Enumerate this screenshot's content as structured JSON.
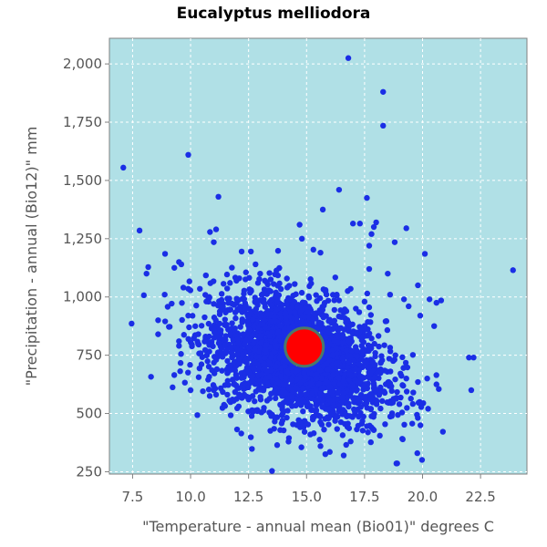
{
  "chart_data": {
    "type": "scatter",
    "title": "Eucalyptus melliodora",
    "xlabel": "\"Temperature - annual mean (Bio01)\" degrees C",
    "ylabel": "\"Precipitation - annual (Bio12)\" mm",
    "xlim": [
      6.5,
      24.5
    ],
    "ylim": [
      240,
      2110
    ],
    "x_ticks": [
      7.5,
      10.0,
      12.5,
      15.0,
      17.5,
      20.0,
      22.5
    ],
    "x_tick_labels": [
      "7.5",
      "10.0",
      "12.5",
      "15.0",
      "17.5",
      "20.0",
      "22.5"
    ],
    "y_ticks": [
      250,
      500,
      750,
      1000,
      1250,
      1500,
      1750,
      2000
    ],
    "y_tick_labels": [
      "250",
      "500",
      "750",
      "1,000",
      "1,250",
      "1,500",
      "1,750",
      "2,000"
    ],
    "grid": true,
    "colors": {
      "plot_background": "#b0e0e6",
      "point": "#1a2ee6",
      "mean_marker": "#ff0000",
      "mean_marker_outline": "#4a7a6a",
      "grid": "#ffffff"
    },
    "mean_point": {
      "x": 14.9,
      "y": 785
    },
    "cluster": {
      "center_x": 14.6,
      "center_y": 760,
      "spread_x": 1.9,
      "spread_y": 130,
      "count": 2600
    },
    "points": [
      [
        16.8,
        2025
      ],
      [
        18.3,
        1880
      ],
      [
        18.3,
        1735
      ],
      [
        9.9,
        1610
      ],
      [
        7.1,
        1555
      ],
      [
        16.4,
        1460
      ],
      [
        17.6,
        1425
      ],
      [
        11.2,
        1430
      ],
      [
        15.7,
        1375
      ],
      [
        14.7,
        1310
      ],
      [
        17.0,
        1315
      ],
      [
        17.3,
        1315
      ],
      [
        17.9,
        1300
      ],
      [
        18.0,
        1320
      ],
      [
        19.3,
        1295
      ],
      [
        7.8,
        1285
      ],
      [
        11.0,
        1235
      ],
      [
        11.1,
        1290
      ],
      [
        12.2,
        1195
      ],
      [
        12.6,
        1195
      ],
      [
        15.6,
        1190
      ],
      [
        14.8,
        1250
      ],
      [
        8.9,
        1185
      ],
      [
        9.5,
        1150
      ],
      [
        9.3,
        1125
      ],
      [
        9.6,
        1140
      ],
      [
        8.1,
        1100
      ],
      [
        20.1,
        1185
      ],
      [
        23.9,
        1115
      ],
      [
        18.8,
        1235
      ],
      [
        17.8,
        1270
      ],
      [
        17.7,
        1220
      ],
      [
        9.9,
        1035
      ],
      [
        10.4,
        1035
      ],
      [
        10.8,
        1000
      ],
      [
        11.4,
        970
      ],
      [
        12.1,
        1080
      ],
      [
        12.8,
        1140
      ],
      [
        13.2,
        1070
      ],
      [
        13.0,
        1100
      ],
      [
        19.8,
        1050
      ],
      [
        20.3,
        990
      ],
      [
        20.6,
        975
      ],
      [
        20.8,
        985
      ],
      [
        19.9,
        920
      ],
      [
        20.5,
        875
      ],
      [
        8.6,
        900
      ],
      [
        8.6,
        840
      ],
      [
        9.5,
        810
      ],
      [
        9.5,
        790
      ],
      [
        9.9,
        920
      ],
      [
        10.0,
        600
      ],
      [
        10.7,
        750
      ],
      [
        11.0,
        600
      ],
      [
        11.6,
        640
      ],
      [
        19.3,
        650
      ],
      [
        19.8,
        635
      ],
      [
        20.2,
        650
      ],
      [
        20.6,
        625
      ],
      [
        20.7,
        605
      ],
      [
        22.0,
        740
      ],
      [
        22.2,
        740
      ],
      [
        22.1,
        600
      ],
      [
        18.7,
        550
      ],
      [
        19.0,
        540
      ],
      [
        16.0,
        335
      ],
      [
        16.6,
        320
      ],
      [
        16.9,
        380
      ],
      [
        15.6,
        360
      ],
      [
        14.0,
        545
      ],
      [
        13.3,
        555
      ],
      [
        12.5,
        560
      ],
      [
        16.3,
        1010
      ],
      [
        16.9,
        1035
      ],
      [
        17.5,
        980
      ],
      [
        18.6,
        1010
      ],
      [
        19.4,
        960
      ],
      [
        19.2,
        990
      ],
      [
        18.5,
        1100
      ],
      [
        17.7,
        1120
      ]
    ]
  }
}
